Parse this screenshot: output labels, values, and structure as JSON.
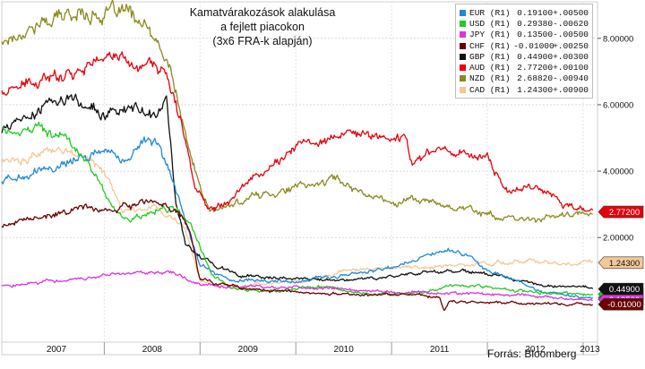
{
  "title_lines": [
    "Kamatvárakozások alakulása",
    "a fejlett piacokon",
    "(3x6 FRA-k alapján)"
  ],
  "source": "Forrás: Bloomberg",
  "chart_data": {
    "type": "line",
    "x_range": [
      2006.93,
      2013.15
    ],
    "ylim": [
      -1.15,
      9.1
    ],
    "y_ticks": [
      2.0,
      4.0,
      6.0,
      8.0
    ],
    "y_tick_labels": [
      "2.00000",
      "4.00000",
      "6.00000",
      "8.00000"
    ],
    "x_tick_labels": [
      {
        "label": "2007",
        "x": 2007.5
      },
      {
        "label": "2008",
        "x": 2008.5
      },
      {
        "label": "2009",
        "x": 2009.5
      },
      {
        "label": "2010",
        "x": 2010.5
      },
      {
        "label": "2011",
        "x": 2011.5
      },
      {
        "label": "2012",
        "x": 2012.5
      },
      {
        "label": "2013",
        "x": 2013.07
      }
    ],
    "x_dividers": [
      2008.0,
      2009.0,
      2010.0,
      2011.0,
      2012.0,
      2013.0
    ],
    "grid": true,
    "legend_position": "top-right",
    "series": [
      {
        "name": "EUR",
        "label": "EUR (R1)",
        "value": "0.19100",
        "change": "+.00500",
        "color": "#1f8ad6",
        "tag": "0.19100",
        "tag_value": 0.191,
        "x": [
          2006.93,
          2007.2,
          2007.5,
          2007.8,
          2008.0,
          2008.2,
          2008.4,
          2008.55,
          2008.75,
          2008.9,
          2009.0,
          2009.3,
          2009.6,
          2010.0,
          2010.3,
          2010.6,
          2011.0,
          2011.3,
          2011.5,
          2011.7,
          2011.9,
          2012.0,
          2012.3,
          2012.6,
          2013.0,
          2013.1
        ],
        "y": [
          3.7,
          3.9,
          4.2,
          4.5,
          4.6,
          4.4,
          4.8,
          5.0,
          3.5,
          2.0,
          1.2,
          0.7,
          0.7,
          0.7,
          0.75,
          0.9,
          1.1,
          1.4,
          1.6,
          1.55,
          1.3,
          1.0,
          0.7,
          0.35,
          0.2,
          0.19
        ]
      },
      {
        "name": "USD",
        "label": "USD (R1)",
        "value": "0.29380",
        "change": "-.00620",
        "color": "#22cc22",
        "tag": "0.29380",
        "tag_value": 0.294,
        "x": [
          2006.93,
          2007.3,
          2007.6,
          2007.8,
          2007.95,
          2008.15,
          2008.3,
          2008.5,
          2008.75,
          2008.9,
          2009.1,
          2009.3,
          2009.6,
          2010.0,
          2010.3,
          2010.5,
          2010.8,
          2011.0,
          2011.3,
          2011.6,
          2011.9,
          2012.1,
          2012.5,
          2013.0,
          2013.1
        ],
        "y": [
          5.3,
          5.2,
          5.0,
          4.4,
          3.6,
          2.6,
          2.5,
          2.8,
          2.9,
          2.4,
          1.0,
          0.5,
          0.35,
          0.45,
          0.55,
          0.4,
          0.3,
          0.3,
          0.35,
          0.5,
          0.55,
          0.45,
          0.35,
          0.3,
          0.29
        ]
      },
      {
        "name": "JPY",
        "label": "JPY (R1)",
        "value": "0.13500",
        "change": "-.00500",
        "color": "#dd33dd",
        "tag": "0.13500",
        "tag_value": 0.135,
        "x": [
          2006.93,
          2007.2,
          2007.5,
          2007.8,
          2008.1,
          2008.4,
          2008.7,
          2008.8,
          2008.9,
          2009.0,
          2009.3,
          2010.0,
          2011.0,
          2012.0,
          2013.0,
          2013.1
        ],
        "y": [
          0.55,
          0.6,
          0.7,
          0.8,
          0.85,
          0.95,
          1.0,
          0.9,
          0.7,
          0.6,
          0.55,
          0.5,
          0.35,
          0.3,
          0.15,
          0.135
        ]
      },
      {
        "name": "CHF",
        "label": "CHF (R1)",
        "value": "-0.01000",
        "change": "+.00250",
        "color": "#6b0000",
        "tag": "-0.01000",
        "tag_value": -0.01,
        "x": [
          2006.93,
          2007.2,
          2007.5,
          2007.8,
          2008.0,
          2008.3,
          2008.6,
          2008.75,
          2008.9,
          2009.0,
          2009.5,
          2010.0,
          2010.5,
          2011.0,
          2011.5,
          2011.55,
          2011.6,
          2012.0,
          2012.5,
          2013.0,
          2013.1
        ],
        "y": [
          2.3,
          2.5,
          2.7,
          2.9,
          2.8,
          3.0,
          3.0,
          2.8,
          2.2,
          0.7,
          0.45,
          0.35,
          0.3,
          0.3,
          0.2,
          -0.25,
          0.05,
          0.05,
          0.0,
          0.0,
          -0.01
        ]
      },
      {
        "name": "GBP",
        "label": "GBP (R1)",
        "value": "0.44900",
        "change": "+.00300",
        "color": "#111111",
        "tag": "0.44900",
        "tag_value": 0.449,
        "x": [
          2006.93,
          2007.2,
          2007.4,
          2007.6,
          2007.8,
          2008.0,
          2008.2,
          2008.4,
          2008.55,
          2008.65,
          2008.75,
          2008.85,
          2009.0,
          2009.4,
          2010.0,
          2010.5,
          2011.0,
          2011.4,
          2011.7,
          2012.0,
          2012.3,
          2012.6,
          2013.0,
          2013.1
        ],
        "y": [
          5.2,
          5.6,
          6.0,
          6.2,
          6.0,
          5.7,
          5.9,
          5.8,
          5.6,
          6.2,
          3.0,
          1.8,
          1.4,
          0.85,
          0.75,
          0.7,
          0.85,
          0.95,
          1.0,
          0.9,
          0.7,
          0.55,
          0.48,
          0.45
        ]
      },
      {
        "name": "AUD",
        "label": "AUD (R1)",
        "value": "2.77200",
        "change": "+.00100",
        "color": "#e8000a",
        "tag": "2.77200",
        "tag_value": 2.772,
        "x": [
          2006.93,
          2007.3,
          2007.6,
          2007.9,
          2008.1,
          2008.3,
          2008.5,
          2008.65,
          2008.8,
          2008.95,
          2009.1,
          2009.3,
          2009.5,
          2009.8,
          2010.0,
          2010.3,
          2010.6,
          2011.0,
          2011.15,
          2011.2,
          2011.5,
          2011.8,
          2012.0,
          2012.2,
          2012.5,
          2012.8,
          2013.0,
          2013.1
        ],
        "y": [
          6.4,
          6.6,
          7.0,
          7.3,
          7.5,
          7.2,
          7.3,
          6.8,
          5.5,
          3.5,
          2.9,
          3.2,
          3.7,
          4.3,
          4.7,
          5.0,
          5.1,
          5.0,
          5.0,
          4.3,
          4.7,
          4.5,
          4.4,
          3.4,
          3.6,
          3.0,
          2.8,
          2.77
        ]
      },
      {
        "name": "NZD",
        "label": "NZD (R1)",
        "value": "2.68820",
        "change": "-.00940",
        "color": "#8a8a1e",
        "tag": "",
        "tag_value": 2.688,
        "x": [
          2006.93,
          2007.2,
          2007.5,
          2007.8,
          2008.0,
          2008.2,
          2008.4,
          2008.5,
          2008.7,
          2008.85,
          2009.0,
          2009.1,
          2009.3,
          2009.5,
          2009.8,
          2010.0,
          2010.2,
          2010.4,
          2010.6,
          2010.8,
          2011.0,
          2011.2,
          2011.5,
          2011.8,
          2012.0,
          2012.3,
          2012.6,
          2013.0,
          2013.1
        ],
        "y": [
          7.9,
          8.3,
          8.6,
          8.8,
          8.7,
          8.8,
          8.4,
          8.0,
          7.0,
          5.0,
          3.5,
          2.8,
          2.9,
          3.2,
          3.4,
          3.5,
          3.6,
          3.8,
          3.5,
          3.3,
          3.0,
          3.2,
          3.0,
          2.9,
          2.7,
          2.5,
          2.6,
          2.7,
          2.69
        ]
      },
      {
        "name": "CAD",
        "label": "CAD (R1)",
        "value": "1.24300",
        "change": "+.00900",
        "color": "#f4c896",
        "tag": "1.24300",
        "tag_value": 1.243,
        "x": [
          2006.93,
          2007.2,
          2007.5,
          2007.8,
          2008.0,
          2008.2,
          2008.35,
          2008.5,
          2008.7,
          2008.85,
          2009.0,
          2009.3,
          2009.6,
          2010.0,
          2010.3,
          2010.5,
          2010.7,
          2011.0,
          2011.3,
          2011.6,
          2012.0,
          2012.3,
          2012.6,
          2013.0,
          2013.1
        ],
        "y": [
          4.3,
          4.4,
          4.6,
          4.5,
          3.9,
          2.7,
          2.9,
          3.0,
          2.6,
          2.2,
          0.7,
          0.5,
          0.6,
          0.7,
          0.8,
          1.0,
          1.0,
          1.1,
          1.1,
          1.15,
          1.2,
          1.3,
          1.25,
          1.25,
          1.24
        ]
      }
    ]
  }
}
